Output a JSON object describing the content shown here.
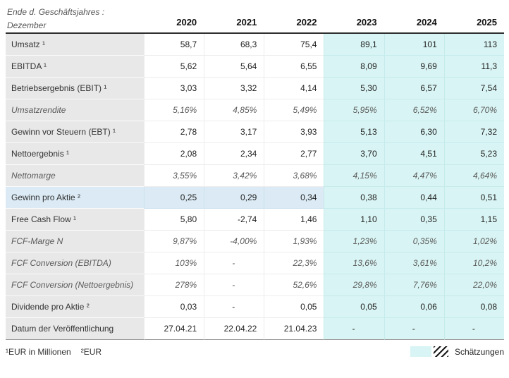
{
  "chart_data": {
    "type": "table",
    "title": "Ende d. Geschäftsjahres :",
    "subtitle": "Dezember",
    "columns": [
      "2020",
      "2021",
      "2022",
      "2023",
      "2024",
      "2025"
    ],
    "estimate_start_index": 3,
    "rows": [
      {
        "label": "Umsatz ¹",
        "style": "normal",
        "values": [
          "58,7",
          "68,3",
          "75,4",
          "89,1",
          "101",
          "113"
        ]
      },
      {
        "label": "EBITDA ¹",
        "style": "normal",
        "values": [
          "5,62",
          "5,64",
          "6,55",
          "8,09",
          "9,69",
          "11,3"
        ]
      },
      {
        "label": "Betriebsergebnis (EBIT) ¹",
        "style": "normal",
        "values": [
          "3,03",
          "3,32",
          "4,14",
          "5,30",
          "6,57",
          "7,54"
        ]
      },
      {
        "label": "Umsatzrendite",
        "style": "italic",
        "values": [
          "5,16%",
          "4,85%",
          "5,49%",
          "5,95%",
          "6,52%",
          "6,70%"
        ]
      },
      {
        "label": "Gewinn vor Steuern (EBT) ¹",
        "style": "normal",
        "values": [
          "2,78",
          "3,17",
          "3,93",
          "5,13",
          "6,30",
          "7,32"
        ]
      },
      {
        "label": "Nettoergebnis ¹",
        "style": "normal",
        "values": [
          "2,08",
          "2,34",
          "2,77",
          "3,70",
          "4,51",
          "5,23"
        ]
      },
      {
        "label": "Nettomarge",
        "style": "italic",
        "values": [
          "3,55%",
          "3,42%",
          "3,68%",
          "4,15%",
          "4,47%",
          "4,64%"
        ]
      },
      {
        "label": "Gewinn pro Aktie ²",
        "style": "highlight",
        "values": [
          "0,25",
          "0,29",
          "0,34",
          "0,38",
          "0,44",
          "0,51"
        ]
      },
      {
        "label": "Free Cash Flow ¹",
        "style": "normal",
        "values": [
          "5,80",
          "-2,74",
          "1,46",
          "1,10",
          "0,35",
          "1,15"
        ]
      },
      {
        "label": "FCF-Marge N",
        "style": "italic",
        "values": [
          "9,87%",
          "-4,00%",
          "1,93%",
          "1,23%",
          "0,35%",
          "1,02%"
        ]
      },
      {
        "label": "FCF Conversion (EBITDA)",
        "style": "italic",
        "values": [
          "103%",
          "-",
          "22,3%",
          "13,6%",
          "3,61%",
          "10,2%"
        ]
      },
      {
        "label": "FCF Conversion (Nettoergebnis)",
        "style": "italic",
        "values": [
          "278%",
          "-",
          "52,6%",
          "29,8%",
          "7,76%",
          "22,0%"
        ]
      },
      {
        "label": "Dividende pro Aktie ²",
        "style": "normal",
        "values": [
          "0,03",
          "-",
          "0,05",
          "0,05",
          "0,06",
          "0,08"
        ]
      },
      {
        "label": "Datum der Veröffentlichung",
        "style": "normal",
        "values": [
          "27.04.21",
          "22.04.22",
          "21.04.23",
          "-",
          "-",
          "-"
        ]
      }
    ],
    "footnotes": [
      "¹EUR in Millionen",
      "²EUR"
    ],
    "legend": {
      "estimate_label": "Schätzungen"
    }
  },
  "colors": {
    "estimate_bg": "#d9f4f4",
    "label_bg": "#e8e8e8",
    "highlight_bg": "#dbeaf4",
    "header_rule": "#2f2f2f",
    "text": "#333333",
    "muted_text": "#5a5a5a"
  }
}
